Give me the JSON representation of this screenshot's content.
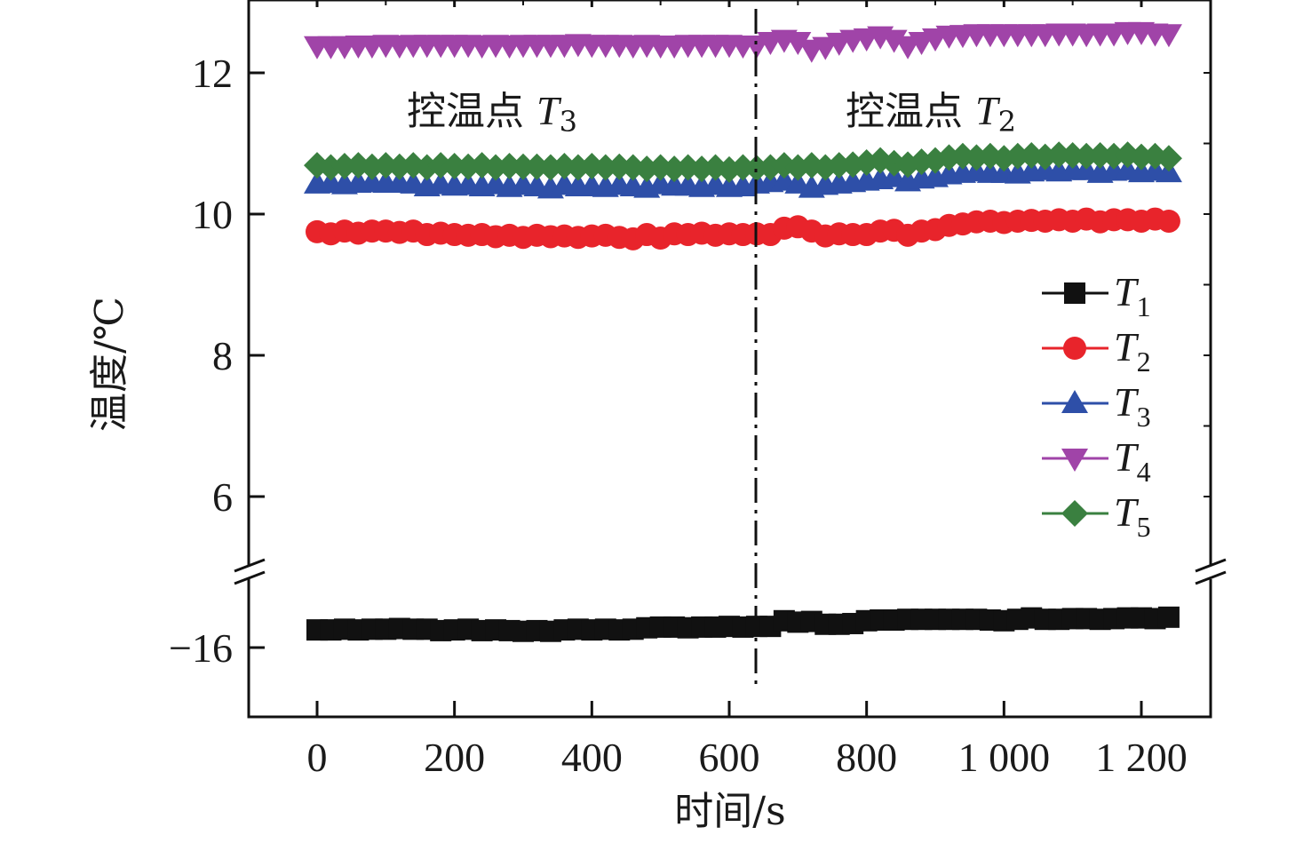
{
  "chart_data": {
    "type": "line",
    "title": "",
    "xlabel": "时间/s",
    "ylabel": "温度/℃",
    "xlim": [
      -100,
      1300
    ],
    "x_ticks": [
      0,
      200,
      400,
      600,
      800,
      1000,
      1200
    ],
    "x_tick_labels": [
      "0",
      "200",
      "400",
      "600",
      "800",
      "1 000",
      "1 200"
    ],
    "y_axis_break": {
      "lower_range": [
        -17.0,
        -15.2
      ],
      "upper_range": [
        5.1,
        13.0
      ]
    },
    "y_ticks": [
      -16,
      6,
      8,
      10,
      12
    ],
    "y_tick_labels": [
      "−16",
      "6",
      "8",
      "10",
      "12"
    ],
    "grid": false,
    "legend_position": "right",
    "annotations": [
      {
        "text": "控温点 ",
        "italic": "T",
        "sub": "3"
      },
      {
        "text": "控温点 ",
        "italic": "T",
        "sub": "2"
      }
    ],
    "vline": {
      "x": 640,
      "style": "dash-dot"
    },
    "x": [
      0,
      20,
      40,
      60,
      80,
      100,
      120,
      140,
      160,
      180,
      200,
      220,
      240,
      260,
      280,
      300,
      320,
      340,
      360,
      380,
      400,
      420,
      440,
      460,
      480,
      500,
      520,
      540,
      560,
      580,
      600,
      620,
      640,
      660,
      680,
      700,
      720,
      740,
      760,
      780,
      800,
      820,
      840,
      860,
      880,
      900,
      920,
      940,
      960,
      980,
      1000,
      1020,
      1040,
      1060,
      1080,
      1100,
      1120,
      1140,
      1160,
      1180,
      1200,
      1220,
      1240
    ],
    "series": [
      {
        "name": "T",
        "sub": "1",
        "color": "#111111",
        "marker": "square",
        "values": [
          -15.75,
          -15.75,
          -15.74,
          -15.75,
          -15.74,
          -15.74,
          -15.73,
          -15.74,
          -15.74,
          -15.76,
          -15.75,
          -15.74,
          -15.76,
          -15.75,
          -15.76,
          -15.77,
          -15.76,
          -15.77,
          -15.75,
          -15.74,
          -15.75,
          -15.74,
          -15.75,
          -15.74,
          -15.72,
          -15.71,
          -15.71,
          -15.72,
          -15.71,
          -15.71,
          -15.7,
          -15.71,
          -15.7,
          -15.7,
          -15.62,
          -15.64,
          -15.63,
          -15.67,
          -15.67,
          -15.66,
          -15.62,
          -15.61,
          -15.61,
          -15.6,
          -15.6,
          -15.6,
          -15.6,
          -15.6,
          -15.6,
          -15.61,
          -15.62,
          -15.6,
          -15.58,
          -15.6,
          -15.6,
          -15.59,
          -15.59,
          -15.6,
          -15.59,
          -15.58,
          -15.58,
          -15.59,
          -15.57
        ]
      },
      {
        "name": "T",
        "sub": "2",
        "color": "#e8242b",
        "marker": "circle",
        "values": [
          9.75,
          9.72,
          9.76,
          9.73,
          9.76,
          9.76,
          9.74,
          9.76,
          9.71,
          9.73,
          9.71,
          9.7,
          9.71,
          9.68,
          9.7,
          9.67,
          9.7,
          9.68,
          9.69,
          9.67,
          9.69,
          9.7,
          9.67,
          9.65,
          9.71,
          9.66,
          9.72,
          9.71,
          9.73,
          9.7,
          9.72,
          9.71,
          9.72,
          9.71,
          9.8,
          9.82,
          9.76,
          9.69,
          9.72,
          9.71,
          9.71,
          9.76,
          9.77,
          9.7,
          9.76,
          9.78,
          9.84,
          9.86,
          9.89,
          9.9,
          9.88,
          9.9,
          9.91,
          9.9,
          9.92,
          9.9,
          9.93,
          9.89,
          9.92,
          9.92,
          9.9,
          9.93,
          9.9
        ]
      },
      {
        "name": "T",
        "sub": "3",
        "color": "#2e4fa8",
        "marker": "triangle-up",
        "values": [
          10.43,
          10.44,
          10.42,
          10.44,
          10.45,
          10.44,
          10.44,
          10.43,
          10.39,
          10.42,
          10.4,
          10.41,
          10.39,
          10.42,
          10.38,
          10.41,
          10.39,
          10.36,
          10.41,
          10.39,
          10.39,
          10.38,
          10.41,
          10.39,
          10.37,
          10.42,
          10.4,
          10.4,
          10.38,
          10.41,
          10.38,
          10.39,
          10.43,
          10.45,
          10.47,
          10.43,
          10.37,
          10.41,
          10.43,
          10.45,
          10.47,
          10.49,
          10.52,
          10.46,
          10.5,
          10.52,
          10.56,
          10.58,
          10.6,
          10.58,
          10.58,
          10.57,
          10.6,
          10.62,
          10.6,
          10.62,
          10.62,
          10.58,
          10.61,
          10.62,
          10.59,
          10.61,
          10.59
        ]
      },
      {
        "name": "T",
        "sub": "4",
        "color": "#a044a8",
        "marker": "triangle-down",
        "values": [
          12.38,
          12.38,
          12.38,
          12.39,
          12.39,
          12.4,
          12.39,
          12.4,
          12.4,
          12.4,
          12.4,
          12.4,
          12.39,
          12.4,
          12.39,
          12.4,
          12.4,
          12.4,
          12.4,
          12.41,
          12.4,
          12.4,
          12.4,
          12.39,
          12.4,
          12.39,
          12.39,
          12.4,
          12.4,
          12.4,
          12.4,
          12.39,
          12.39,
          12.44,
          12.47,
          12.44,
          12.33,
          12.37,
          12.43,
          12.47,
          12.49,
          12.52,
          12.47,
          12.38,
          12.44,
          12.49,
          12.53,
          12.54,
          12.55,
          12.55,
          12.55,
          12.55,
          12.55,
          12.55,
          12.56,
          12.56,
          12.55,
          12.56,
          12.56,
          12.58,
          12.58,
          12.56,
          12.55
        ]
      },
      {
        "name": "T",
        "sub": "5",
        "color": "#3a8040",
        "marker": "diamond",
        "values": [
          10.69,
          10.66,
          10.68,
          10.69,
          10.67,
          10.69,
          10.67,
          10.69,
          10.66,
          10.69,
          10.68,
          10.67,
          10.69,
          10.66,
          10.68,
          10.67,
          10.67,
          10.66,
          10.68,
          10.66,
          10.68,
          10.66,
          10.67,
          10.66,
          10.64,
          10.66,
          10.64,
          10.66,
          10.64,
          10.66,
          10.63,
          10.66,
          10.65,
          10.66,
          10.69,
          10.66,
          10.69,
          10.66,
          10.69,
          10.7,
          10.73,
          10.76,
          10.72,
          10.7,
          10.74,
          10.76,
          10.8,
          10.82,
          10.8,
          10.82,
          10.79,
          10.82,
          10.83,
          10.81,
          10.84,
          10.83,
          10.82,
          10.83,
          10.82,
          10.84,
          10.81,
          10.82,
          10.79
        ]
      }
    ]
  }
}
